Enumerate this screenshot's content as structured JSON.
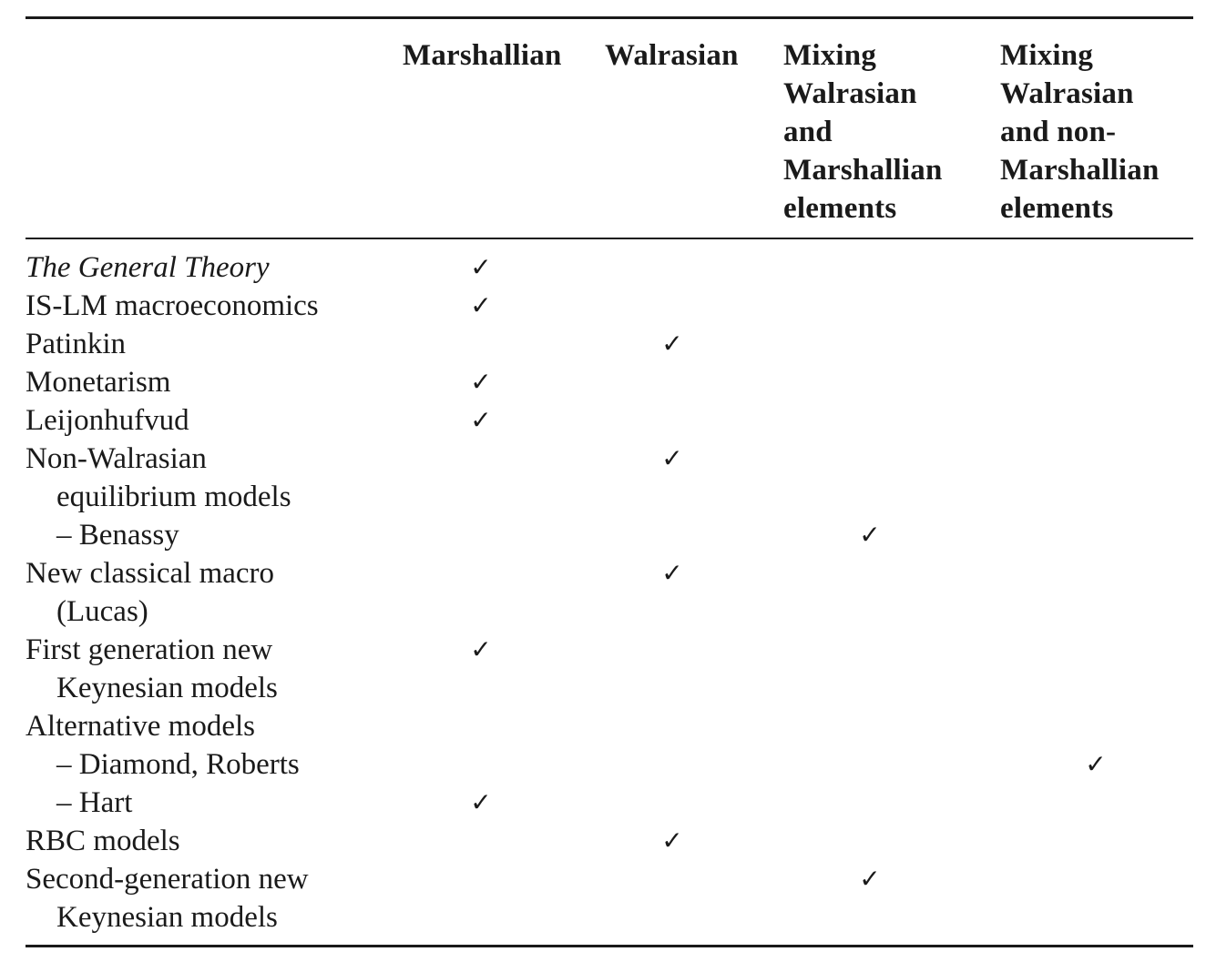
{
  "table": {
    "headers": [
      {
        "lines": [
          "Marshallian"
        ]
      },
      {
        "lines": [
          "Walrasian"
        ]
      },
      {
        "lines": [
          "Mixing",
          "Walrasian",
          "and",
          "Marshallian",
          "elements"
        ]
      },
      {
        "lines": [
          "Mixing",
          "Walrasian",
          "and non-",
          "Marshallian",
          "elements"
        ]
      }
    ],
    "check_mark": "✓",
    "rows": [
      {
        "label": [
          "The General Theory"
        ],
        "italic": true,
        "checks": [
          {
            "col": 0,
            "line": 0
          }
        ]
      },
      {
        "label": [
          "IS-LM macroeconomics"
        ],
        "checks": [
          {
            "col": 0,
            "line": 0
          }
        ]
      },
      {
        "label": [
          "Patinkin"
        ],
        "checks": [
          {
            "col": 1,
            "line": 0
          }
        ]
      },
      {
        "label": [
          "Monetarism"
        ],
        "checks": [
          {
            "col": 0,
            "line": 0
          }
        ]
      },
      {
        "label": [
          "Leijonhufvud"
        ],
        "checks": [
          {
            "col": 0,
            "line": 0
          }
        ]
      },
      {
        "label": [
          "Non-Walrasian",
          "equilibrium models",
          "– Benassy"
        ],
        "checks": [
          {
            "col": 1,
            "line": 0
          },
          {
            "col": 2,
            "line": 2
          }
        ]
      },
      {
        "label": [
          "New classical macro",
          "(Lucas)"
        ],
        "checks": [
          {
            "col": 1,
            "line": 0
          }
        ]
      },
      {
        "label": [
          "First generation new",
          "Keynesian models"
        ],
        "checks": [
          {
            "col": 0,
            "line": 0
          }
        ]
      },
      {
        "label": [
          "Alternative models",
          "– Diamond, Roberts",
          "– Hart"
        ],
        "checks": [
          {
            "col": 3,
            "line": 1
          },
          {
            "col": 0,
            "line": 2
          }
        ]
      },
      {
        "label": [
          "RBC models"
        ],
        "checks": [
          {
            "col": 1,
            "line": 0
          }
        ]
      },
      {
        "label": [
          "Second-generation new",
          "Keynesian models"
        ],
        "checks": [
          {
            "col": 2,
            "line": 0
          }
        ]
      }
    ]
  }
}
